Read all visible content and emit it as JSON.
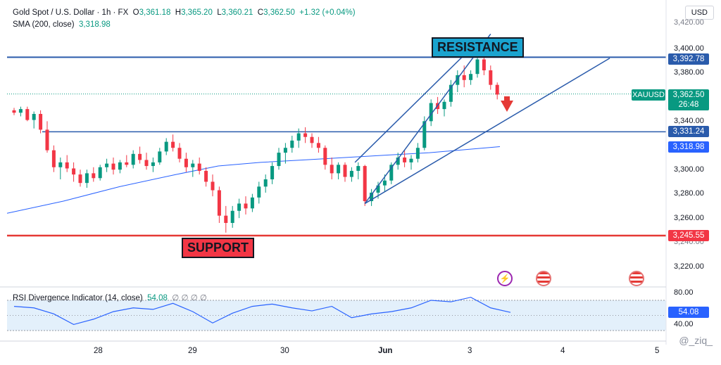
{
  "header": {
    "symbol": "Gold Spot / U.S. Dollar · 1h · FX",
    "open_label": "O",
    "open": "3,361.18",
    "high_label": "H",
    "high": "3,365.20",
    "low_label": "L",
    "low": "3,360.21",
    "close_label": "C",
    "close": "3,362.50",
    "change": "+1.32 (+0.04%)",
    "sma_label": "SMA (200, close)",
    "sma_value": "3,318.98",
    "currency": "USD"
  },
  "rsi": {
    "label": "RSI Divergence Indicator (14, close)",
    "value": "54.08",
    "zeros": "∅ ∅ ∅ ∅",
    "axis_ticks": [
      "80.00",
      "40.00"
    ],
    "current_box": "54.08"
  },
  "price_axis": {
    "ticks": [
      "3,400.00",
      "3,380.00",
      "3,340.00",
      "3,300.00",
      "3,280.00",
      "3,260.00",
      "3,220.00"
    ],
    "resistance_box": "3,392.78",
    "current_ticker": "XAUUSD",
    "current_box": "3,362.50",
    "countdown": "26:48",
    "level_box": "3,331.24",
    "sma_box": "3,318.98",
    "support_box": "3,245.55",
    "top_partial": "3,420.00",
    "low_partial": "3,240.00"
  },
  "annotations": {
    "resistance": "RESISTANCE",
    "support": "SUPPORT"
  },
  "time_axis": [
    "28",
    "29",
    "30",
    "Jun",
    "3",
    "4",
    "5"
  ],
  "watermark": "@_ziq_",
  "colors": {
    "up": "#089981",
    "down": "#f23645",
    "level": "#2a5bab",
    "support": "#e53935",
    "sma": "#2962ff",
    "resistance_bg": "#1aa3cf",
    "support_bg": "#f23645",
    "rsi_line": "#2962ff"
  },
  "chart_data": {
    "type": "candlestick",
    "price_levels": {
      "resistance": 3392.78,
      "horizontal_level": 3331.24,
      "support": 3245.55,
      "last_price": 3362.5,
      "sma_200": 3318.98
    },
    "price_range": [
      3210,
      3425
    ],
    "candles": [
      [
        3349,
        3351,
        3345,
        3347
      ],
      [
        3347,
        3352,
        3344,
        3350
      ],
      [
        3350,
        3352,
        3340,
        3341
      ],
      [
        3341,
        3348,
        3334,
        3346
      ],
      [
        3346,
        3349,
        3330,
        3333
      ],
      [
        3333,
        3340,
        3314,
        3316
      ],
      [
        3316,
        3320,
        3298,
        3302
      ],
      [
        3302,
        3310,
        3292,
        3306
      ],
      [
        3306,
        3312,
        3298,
        3301
      ],
      [
        3301,
        3306,
        3290,
        3296
      ],
      [
        3296,
        3300,
        3286,
        3289
      ],
      [
        3289,
        3300,
        3285,
        3297
      ],
      [
        3297,
        3302,
        3290,
        3293
      ],
      [
        3293,
        3304,
        3291,
        3302
      ],
      [
        3302,
        3309,
        3298,
        3305
      ],
      [
        3305,
        3310,
        3296,
        3300
      ],
      [
        3300,
        3308,
        3297,
        3306
      ],
      [
        3306,
        3312,
        3302,
        3304
      ],
      [
        3304,
        3316,
        3301,
        3313
      ],
      [
        3313,
        3319,
        3305,
        3308
      ],
      [
        3308,
        3314,
        3300,
        3303
      ],
      [
        3303,
        3310,
        3298,
        3306
      ],
      [
        3306,
        3318,
        3304,
        3315
      ],
      [
        3315,
        3326,
        3312,
        3323
      ],
      [
        3323,
        3329,
        3315,
        3318
      ],
      [
        3318,
        3322,
        3306,
        3309
      ],
      [
        3309,
        3314,
        3298,
        3302
      ],
      [
        3302,
        3308,
        3294,
        3305
      ],
      [
        3305,
        3310,
        3296,
        3299
      ],
      [
        3299,
        3302,
        3286,
        3290
      ],
      [
        3290,
        3296,
        3278,
        3283
      ],
      [
        3283,
        3286,
        3256,
        3262
      ],
      [
        3262,
        3270,
        3248,
        3256
      ],
      [
        3256,
        3270,
        3252,
        3266
      ],
      [
        3266,
        3276,
        3260,
        3272
      ],
      [
        3272,
        3278,
        3263,
        3268
      ],
      [
        3268,
        3280,
        3265,
        3277
      ],
      [
        3277,
        3290,
        3272,
        3286
      ],
      [
        3286,
        3296,
        3281,
        3292
      ],
      [
        3292,
        3306,
        3288,
        3303
      ],
      [
        3303,
        3318,
        3300,
        3314
      ],
      [
        3314,
        3322,
        3305,
        3318
      ],
      [
        3318,
        3328,
        3314,
        3324
      ],
      [
        3324,
        3334,
        3318,
        3330
      ],
      [
        3330,
        3335,
        3322,
        3327
      ],
      [
        3327,
        3330,
        3318,
        3322
      ],
      [
        3322,
        3327,
        3314,
        3318
      ],
      [
        3318,
        3320,
        3300,
        3304
      ],
      [
        3304,
        3310,
        3292,
        3297
      ],
      [
        3297,
        3306,
        3292,
        3304
      ],
      [
        3304,
        3306,
        3290,
        3294
      ],
      [
        3294,
        3302,
        3290,
        3299
      ],
      [
        3299,
        3306,
        3292,
        3303
      ],
      [
        3303,
        3304,
        3270,
        3274
      ],
      [
        3274,
        3284,
        3270,
        3281
      ],
      [
        3281,
        3290,
        3276,
        3287
      ],
      [
        3287,
        3296,
        3282,
        3291
      ],
      [
        3291,
        3306,
        3288,
        3304
      ],
      [
        3304,
        3314,
        3300,
        3310
      ],
      [
        3310,
        3316,
        3302,
        3306
      ],
      [
        3306,
        3312,
        3300,
        3309
      ],
      [
        3309,
        3322,
        3306,
        3318
      ],
      [
        3318,
        3344,
        3316,
        3340
      ],
      [
        3340,
        3358,
        3336,
        3355
      ],
      [
        3355,
        3360,
        3346,
        3350
      ],
      [
        3350,
        3358,
        3344,
        3356
      ],
      [
        3356,
        3374,
        3352,
        3370
      ],
      [
        3370,
        3382,
        3364,
        3378
      ],
      [
        3378,
        3386,
        3368,
        3374
      ],
      [
        3374,
        3382,
        3370,
        3379
      ],
      [
        3379,
        3394,
        3376,
        3391
      ],
      [
        3391,
        3395,
        3378,
        3382
      ],
      [
        3382,
        3386,
        3366,
        3370
      ],
      [
        3370,
        3372,
        3358,
        3362
      ]
    ],
    "sma_points": [
      [
        0,
        3264
      ],
      [
        20,
        3274
      ],
      [
        40,
        3286
      ],
      [
        60,
        3296
      ],
      [
        75,
        3303
      ],
      [
        90,
        3306
      ],
      [
        105,
        3308
      ],
      [
        120,
        3310
      ],
      [
        135,
        3312
      ],
      [
        150,
        3314
      ],
      [
        175,
        3319
      ]
    ],
    "rsi_points": [
      [
        0,
        62
      ],
      [
        3,
        60
      ],
      [
        6,
        52
      ],
      [
        9,
        38
      ],
      [
        12,
        45
      ],
      [
        15,
        55
      ],
      [
        18,
        60
      ],
      [
        21,
        58
      ],
      [
        24,
        66
      ],
      [
        27,
        55
      ],
      [
        30,
        40
      ],
      [
        33,
        53
      ],
      [
        36,
        62
      ],
      [
        39,
        65
      ],
      [
        42,
        60
      ],
      [
        45,
        56
      ],
      [
        48,
        62
      ],
      [
        51,
        47
      ],
      [
        54,
        52
      ],
      [
        57,
        55
      ],
      [
        60,
        60
      ],
      [
        63,
        70
      ],
      [
        66,
        68
      ],
      [
        69,
        74
      ],
      [
        72,
        60
      ],
      [
        75,
        54
      ]
    ],
    "rsi_range": [
      30,
      90
    ],
    "channel_lines": [
      {
        "from": [
          53,
          3272
        ],
        "to": [
          72,
          3412
        ]
      },
      {
        "from": [
          53,
          3272
        ],
        "to": [
          90,
          3392
        ]
      }
    ]
  }
}
